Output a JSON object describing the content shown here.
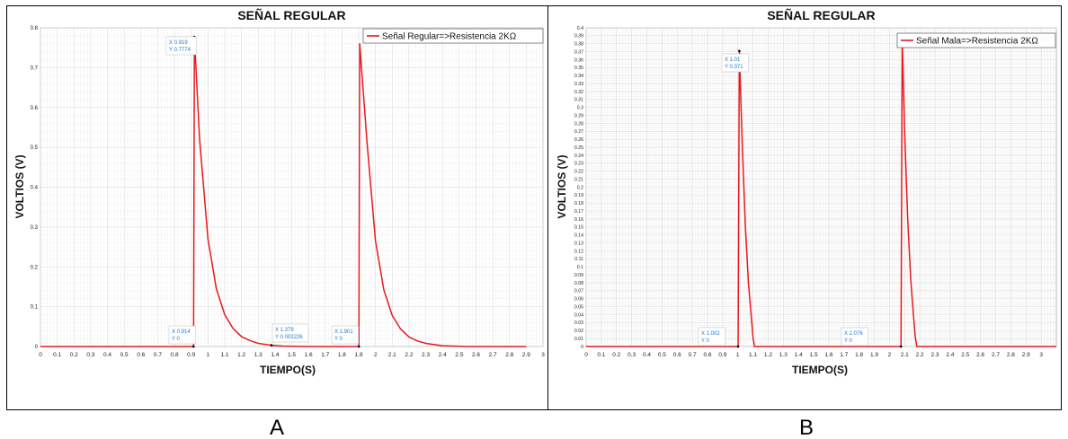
{
  "chart_data": [
    {
      "panel_label": "A",
      "type": "line",
      "title": "SEÑAL REGULAR",
      "xlabel": "TIEMPO(S)",
      "ylabel": "VOLTIOS (V)",
      "xlim": [
        0,
        3
      ],
      "ylim": [
        0,
        0.8
      ],
      "xticks": [
        "0",
        "0.1",
        "0.2",
        "0.3",
        "0.4",
        "0.5",
        "0.6",
        "0.7",
        "0.8",
        "0.9",
        "1",
        "1.1",
        "1.2",
        "1.3",
        "1.4",
        "1.5",
        "1.6",
        "1.7",
        "1.8",
        "1.9",
        "2",
        "2.1",
        "2.2",
        "2.3",
        "2.4",
        "2.5",
        "2.6",
        "2.7",
        "2.8",
        "2.9",
        "3"
      ],
      "yticks": [
        "0",
        "0.1",
        "0.2",
        "0.3",
        "0.4",
        "0.5",
        "0.6",
        "0.7",
        "0.8"
      ],
      "grid": true,
      "legend_position": "top-right",
      "series": [
        {
          "name": "Señal Regular=>Resistencia 2KΩ",
          "color": "#e8191e",
          "x": [
            0,
            0.914,
            0.919,
            0.95,
            1.0,
            1.05,
            1.1,
            1.15,
            1.2,
            1.25,
            1.3,
            1.379,
            1.45,
            1.6,
            1.8,
            1.901,
            1.906,
            1.95,
            2.0,
            2.05,
            2.1,
            2.15,
            2.2,
            2.25,
            2.3,
            2.4,
            2.55,
            2.9
          ],
          "y": [
            0,
            0,
            0.7774,
            0.52,
            0.27,
            0.145,
            0.08,
            0.045,
            0.025,
            0.015,
            0.008,
            0.003226,
            0.001,
            0.0,
            0.0,
            0,
            0.76,
            0.51,
            0.265,
            0.142,
            0.078,
            0.044,
            0.024,
            0.014,
            0.008,
            0.002,
            0.0,
            0
          ]
        }
      ],
      "annotations": [
        {
          "x": 0.919,
          "y": 0.7774,
          "x_text": "X 0.919",
          "y_text": "Y 0.7774"
        },
        {
          "x": 0.914,
          "y": 0,
          "x_text": "X 0.914",
          "y_text": "Y 0"
        },
        {
          "x": 1.379,
          "y": 0.003226,
          "x_text": "X 1.379",
          "y_text": "Y 0.003226"
        },
        {
          "x": 1.901,
          "y": 0,
          "x_text": "X 1.901",
          "y_text": "Y 0"
        }
      ]
    },
    {
      "panel_label": "B",
      "type": "line",
      "title": "SEÑAL REGULAR",
      "xlabel": "TIEMPO(S)",
      "ylabel": "VOLTIOS (V)",
      "xlim": [
        0,
        3.1
      ],
      "ylim": [
        0,
        0.4
      ],
      "xticks": [
        "0",
        "0.1",
        "0.2",
        "0.3",
        "0.4",
        "0.5",
        "0.6",
        "0.7",
        "0.8",
        "0.9",
        "1",
        "1.1",
        "1.2",
        "1.3",
        "1.4",
        "1.5",
        "1.6",
        "1.7",
        "1.8",
        "1.9",
        "2",
        "2.1",
        "2.2",
        "2.3",
        "2.4",
        "2.5",
        "2.6",
        "2.7",
        "2.8",
        "2.9",
        "3"
      ],
      "yticks": [
        "0",
        "0.01",
        "0.02",
        "0.03",
        "0.04",
        "0.05",
        "0.06",
        "0.07",
        "0.08",
        "0.09",
        "0.1",
        "0.11",
        "0.12",
        "0.13",
        "0.14",
        "0.15",
        "0.16",
        "0.17",
        "0.18",
        "0.19",
        "0.2",
        "0.21",
        "0.22",
        "0.23",
        "0.24",
        "0.25",
        "0.26",
        "0.27",
        "0.28",
        "0.29",
        "0.3",
        "0.31",
        "0.32",
        "0.33",
        "0.34",
        "0.35",
        "0.36",
        "0.37",
        "0.38",
        "0.39",
        "0.4"
      ],
      "grid": true,
      "legend_position": "top-right",
      "series": [
        {
          "name": "Señal Mala=>Resistencia  2KΩ",
          "color": "#e8191e",
          "x": [
            0,
            1.002,
            1.01,
            1.03,
            1.05,
            1.07,
            1.09,
            1.1,
            1.11,
            2.076,
            2.084,
            2.1,
            2.12,
            2.14,
            2.16,
            2.17,
            2.18,
            3.1
          ],
          "y": [
            0,
            0,
            0.371,
            0.25,
            0.15,
            0.08,
            0.035,
            0.012,
            0,
            0,
            0.385,
            0.27,
            0.16,
            0.085,
            0.035,
            0.012,
            0,
            0
          ]
        }
      ],
      "annotations": [
        {
          "x": 1.01,
          "y": 0.371,
          "x_text": "X 1.01",
          "y_text": "Y 0.371"
        },
        {
          "x": 1.002,
          "y": 0,
          "x_text": "X 1.002",
          "y_text": "Y 0"
        },
        {
          "x": 2.076,
          "y": 0,
          "x_text": "X 2.076",
          "y_text": "Y 0"
        }
      ]
    }
  ]
}
